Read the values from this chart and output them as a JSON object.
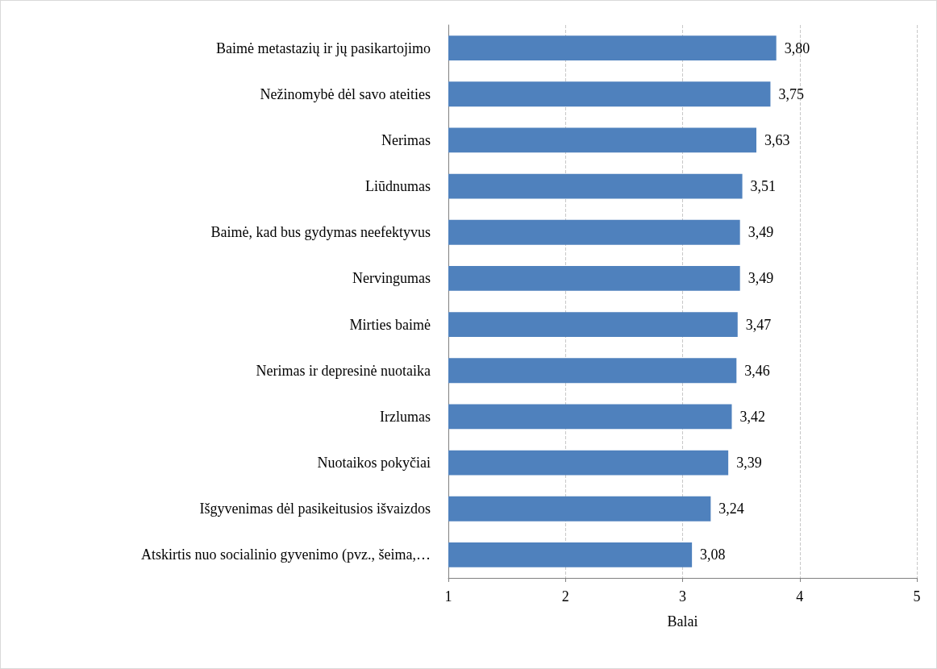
{
  "chart_data": {
    "type": "bar",
    "orientation": "horizontal",
    "xlabel": "Balai",
    "categories": [
      "Baimė metastazių ir jų pasikartojimo",
      "Nežinomybė dėl savo ateities",
      "Nerimas",
      "Liūdnumas",
      "Baimė, kad bus gydymas neefektyvus",
      "Nervingumas",
      "Mirties baimė",
      "Nerimas ir depresinė nuotaika",
      "Irzlumas",
      "Nuotaikos pokyčiai",
      "Išgyvenimas dėl pasikeitusios išvaizdos",
      "Atskirtis nuo socialinio gyvenimo (pvz., šeima,…"
    ],
    "values": [
      3.8,
      3.75,
      3.63,
      3.51,
      3.49,
      3.49,
      3.47,
      3.46,
      3.42,
      3.39,
      3.24,
      3.08
    ],
    "value_labels": [
      "3,80",
      "3,75",
      "3,63",
      "3,51",
      "3,49",
      "3,49",
      "3,47",
      "3,46",
      "3,42",
      "3,39",
      "3,24",
      "3,08"
    ],
    "color": "#4f81bd",
    "xlim": [
      1,
      5
    ],
    "xticks": [
      1,
      2,
      3,
      4,
      5
    ],
    "grid": "x"
  }
}
